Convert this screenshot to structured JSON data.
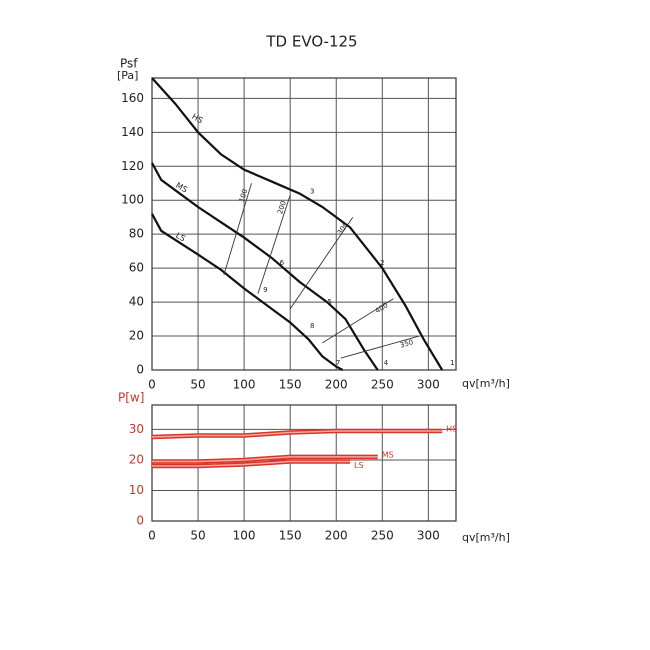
{
  "chart_data": [
    {
      "type": "line",
      "title": "TD EVO-125",
      "y_label": "Psf",
      "y_unit_label": "[Pa]",
      "x_label": "qv[m³/h]",
      "xlim": [
        0,
        330
      ],
      "xticks": [
        0,
        50,
        100,
        150,
        200,
        250,
        300
      ],
      "ylim": [
        0,
        172
      ],
      "yticks": [
        0,
        20,
        40,
        60,
        80,
        100,
        120,
        140,
        160
      ],
      "grid": true,
      "series": [
        {
          "name": "HS",
          "color": "#111111",
          "x": [
            0,
            25,
            50,
            75,
            100,
            130,
            160,
            185,
            215,
            250,
            275,
            295,
            315
          ],
          "values": [
            172,
            157,
            140,
            127,
            118,
            111,
            104,
            96,
            84,
            60,
            38,
            18,
            0
          ]
        },
        {
          "name": "MS",
          "color": "#111111",
          "x": [
            0,
            10,
            30,
            50,
            75,
            100,
            130,
            160,
            190,
            210,
            230,
            245
          ],
          "values": [
            122,
            112,
            104,
            96,
            87,
            78,
            66,
            52,
            40,
            30,
            12,
            0
          ]
        },
        {
          "name": "LS",
          "color": "#111111",
          "x": [
            0,
            10,
            30,
            50,
            75,
            100,
            125,
            150,
            170,
            185,
            200,
            207
          ],
          "values": [
            92,
            82,
            75,
            68,
            59,
            48,
            38,
            28,
            18,
            8,
            2,
            0
          ]
        }
      ],
      "system_lines": [
        {
          "label": "100",
          "x": [
            78,
            108
          ],
          "y": [
            56,
            110
          ]
        },
        {
          "label": "200",
          "x": [
            115,
            150
          ],
          "y": [
            45,
            103
          ]
        },
        {
          "label": "300",
          "x": [
            150,
            218
          ],
          "y": [
            36,
            90
          ]
        },
        {
          "label": "400",
          "x": [
            185,
            262
          ],
          "y": [
            16,
            42
          ]
        },
        {
          "label": "350",
          "x": [
            205,
            290
          ],
          "y": [
            7,
            20
          ]
        }
      ],
      "points": [
        {
          "label": "1",
          "x": 326,
          "y": 4
        },
        {
          "label": "2",
          "x": 250,
          "y": 63
        },
        {
          "label": "3",
          "x": 174,
          "y": 105
        },
        {
          "label": "4",
          "x": 254,
          "y": 4
        },
        {
          "label": "5",
          "x": 193,
          "y": 40
        },
        {
          "label": "6",
          "x": 141,
          "y": 63
        },
        {
          "label": "7",
          "x": 202,
          "y": 4
        },
        {
          "label": "8",
          "x": 174,
          "y": 26
        },
        {
          "label": "9",
          "x": 123,
          "y": 47
        }
      ]
    },
    {
      "type": "line",
      "y_label": "P[w]",
      "x_label": "qv[m³/h]",
      "axis_color": "#c0392b",
      "xlim": [
        0,
        330
      ],
      "xticks": [
        0,
        50,
        100,
        150,
        200,
        250,
        300
      ],
      "ylim": [
        0,
        38
      ],
      "yticks": [
        0,
        10,
        20,
        30
      ],
      "grid": true,
      "series": [
        {
          "name": "HS",
          "color": "#d9352b",
          "x": [
            0,
            50,
            100,
            150,
            200,
            250,
            315
          ],
          "values": [
            27.5,
            28,
            28,
            29,
            29.5,
            29.5,
            29.5
          ]
        },
        {
          "name": "MS",
          "color": "#d9352b",
          "x": [
            0,
            50,
            100,
            150,
            200,
            245
          ],
          "values": [
            19.5,
            19.5,
            20,
            21,
            21,
            21
          ]
        },
        {
          "name": "LS",
          "color": "#d9352b",
          "x": [
            0,
            50,
            100,
            150,
            200,
            215
          ],
          "values": [
            18,
            18,
            18.5,
            19.5,
            19.5,
            19.5
          ]
        }
      ]
    }
  ]
}
